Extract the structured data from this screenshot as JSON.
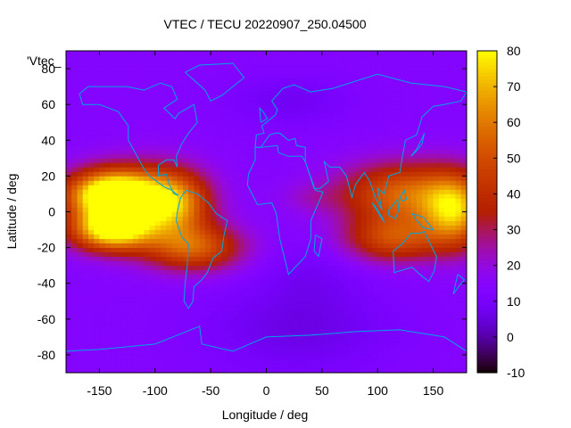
{
  "chart_data": {
    "type": "heatmap",
    "title": "VTEC / TECU 20220907_250.04500",
    "xlabel": "Longitude / deg",
    "ylabel": "Latitude / deg",
    "key_label": "'Vtec_",
    "xlim": [
      -180,
      180
    ],
    "ylim": [
      -90,
      90
    ],
    "xticks": [
      -150,
      -100,
      -50,
      0,
      50,
      100,
      150
    ],
    "yticks": [
      -80,
      -60,
      -40,
      -20,
      0,
      20,
      40,
      60,
      80
    ],
    "colorbar": {
      "range": [
        -10,
        80
      ],
      "ticks": [
        -10,
        0,
        10,
        20,
        30,
        40,
        50,
        60,
        70,
        80
      ]
    },
    "background_tec": 14,
    "features": [
      {
        "lon": -140,
        "lat": 10,
        "tec": 68,
        "sigma_lon": 28,
        "sigma_lat": 9
      },
      {
        "lon": -140,
        "lat": -10,
        "tec": 62,
        "sigma_lon": 25,
        "sigma_lat": 8
      },
      {
        "lon": -110,
        "lat": 5,
        "tec": 40,
        "sigma_lon": 35,
        "sigma_lat": 14
      },
      {
        "lon": -80,
        "lat": 5,
        "tec": 30,
        "sigma_lon": 20,
        "sigma_lat": 12
      },
      {
        "lon": -65,
        "lat": -20,
        "tec": 38,
        "sigma_lon": 30,
        "sigma_lat": 9
      },
      {
        "lon": 125,
        "lat": 10,
        "tec": 42,
        "sigma_lon": 40,
        "sigma_lat": 12
      },
      {
        "lon": 170,
        "lat": 0,
        "tec": 48,
        "sigma_lon": 20,
        "sigma_lat": 14
      },
      {
        "lon": 115,
        "lat": -15,
        "tec": 34,
        "sigma_lon": 30,
        "sigma_lat": 9
      },
      {
        "lon": 30,
        "lat": -65,
        "tec": -8,
        "sigma_lon": 60,
        "sigma_lat": 18
      },
      {
        "lon": 20,
        "lat": 62,
        "tec": -6,
        "sigma_lon": 40,
        "sigma_lat": 10
      },
      {
        "lon": 40,
        "lat": -35,
        "tec": -4,
        "sigma_lon": 30,
        "sigma_lat": 12
      },
      {
        "lon": 40,
        "lat": 8,
        "tec": 6,
        "sigma_lon": 20,
        "sigma_lat": 6
      }
    ]
  },
  "colors": {
    "coastline": "#00a5e6",
    "background": "#ffffff"
  }
}
